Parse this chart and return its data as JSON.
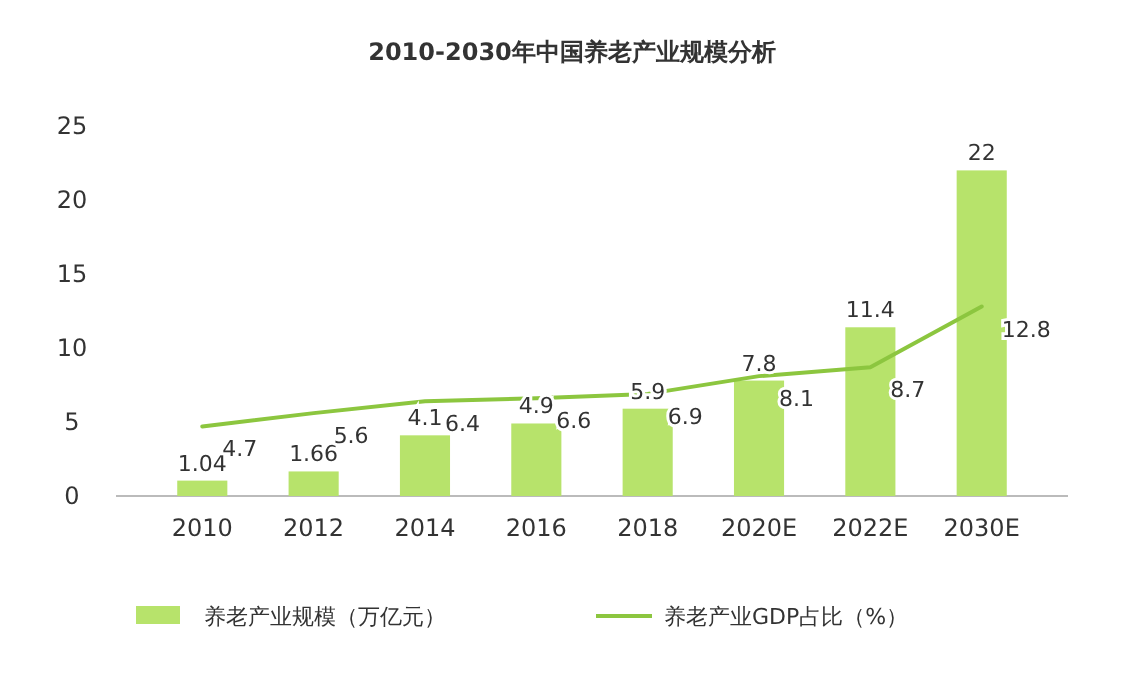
{
  "chart_data": {
    "type": "bar",
    "title": "2010-2030年中国养老产业规模分析",
    "categories": [
      "2010",
      "2012",
      "2014",
      "2016",
      "2018",
      "2020E",
      "2022E",
      "2030E"
    ],
    "series": [
      {
        "name": "养老产业规模（万亿元）",
        "color": "#b7e36b",
        "values": [
          1.04,
          1.66,
          4.1,
          4.9,
          5.9,
          7.8,
          11.4,
          22
        ]
      },
      {
        "name": "养老产业GDP占比（%）",
        "type": "line",
        "color": "#8cc63f",
        "values": [
          4.7,
          5.6,
          6.4,
          6.6,
          6.9,
          8.1,
          8.7,
          12.8
        ]
      }
    ],
    "ylim": [
      0,
      25
    ],
    "yticks": [
      0,
      5,
      10,
      15,
      20,
      25
    ],
    "data_labels": true,
    "legend": "bottom",
    "grid": false
  }
}
